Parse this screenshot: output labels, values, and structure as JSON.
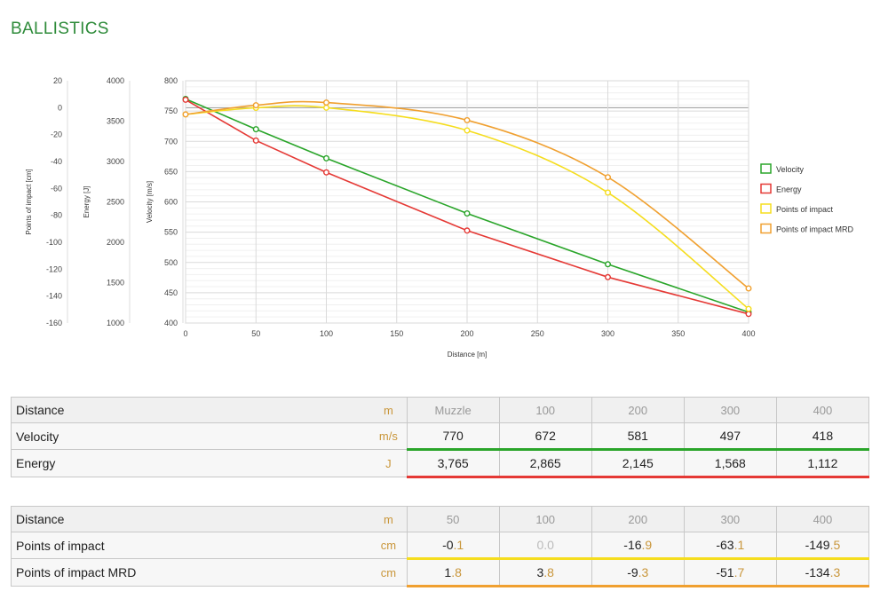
{
  "page": {
    "title": "BALLISTICS"
  },
  "chart_data": {
    "type": "line",
    "xlabel": "Distance [m]",
    "x": [
      0,
      50,
      100,
      200,
      300,
      400
    ],
    "xlim": [
      0,
      400
    ],
    "xticks": [
      0,
      50,
      100,
      150,
      200,
      250,
      300,
      350,
      400
    ],
    "axes": [
      {
        "label": "Velocity [m/s]",
        "range": [
          400,
          800
        ],
        "ticks": [
          400,
          450,
          500,
          550,
          600,
          650,
          700,
          750,
          800
        ]
      },
      {
        "label": "Energy [J]",
        "range": [
          1000,
          4000
        ],
        "ticks": [
          1000,
          1500,
          2000,
          2500,
          3000,
          3500,
          4000
        ]
      },
      {
        "label": "Points of impact [cm]",
        "range": [
          -160,
          20
        ],
        "ticks": [
          -160,
          -140,
          -120,
          -100,
          -80,
          -60,
          -40,
          -20,
          0,
          20
        ]
      }
    ],
    "series": [
      {
        "name": "Velocity",
        "axis": 0,
        "color": "#2aa52a",
        "values": [
          770,
          720,
          672,
          581,
          497,
          418
        ]
      },
      {
        "name": "Energy",
        "axis": 1,
        "color": "#e53935",
        "values": [
          3765,
          3260,
          2865,
          2145,
          1568,
          1112
        ]
      },
      {
        "name": "Points of impact",
        "axis": 2,
        "color": "#f5dd1e",
        "values": [
          -5,
          -0.1,
          0.0,
          -16.9,
          -63.1,
          -149.5
        ]
      },
      {
        "name": "Points of impact MRD",
        "axis": 2,
        "color": "#f0a030",
        "values": [
          -5,
          1.8,
          3.8,
          -9.3,
          -51.7,
          -134.3
        ]
      }
    ],
    "legend_position": "right",
    "grid": true
  },
  "table1": {
    "header": {
      "label": "Distance",
      "unit": "m",
      "values": [
        "Muzzle",
        "100",
        "200",
        "300",
        "400"
      ]
    },
    "rows": [
      {
        "label": "Velocity",
        "unit": "m/s",
        "values": [
          "770",
          "672",
          "581",
          "497",
          "418"
        ]
      },
      {
        "label": "Energy",
        "unit": "J",
        "values": [
          "3,765",
          "2,865",
          "2,145",
          "1,568",
          "1,112"
        ]
      }
    ]
  },
  "table2": {
    "header": {
      "label": "Distance",
      "unit": "m",
      "values": [
        "50",
        "100",
        "200",
        "300",
        "400"
      ]
    },
    "rows": [
      {
        "label": "Points of impact",
        "unit": "cm",
        "values": [
          {
            "int": "-0",
            "frac": ".1"
          },
          {
            "int": "0",
            "frac": ".0"
          },
          {
            "int": "-16",
            "frac": ".9"
          },
          {
            "int": "-63",
            "frac": ".1"
          },
          {
            "int": "-149",
            "frac": ".5"
          }
        ]
      },
      {
        "label": "Points of impact MRD",
        "unit": "cm",
        "values": [
          {
            "int": "1",
            "frac": ".8"
          },
          {
            "int": "3",
            "frac": ".8"
          },
          {
            "int": "-9",
            "frac": ".3"
          },
          {
            "int": "-51",
            "frac": ".7"
          },
          {
            "int": "-134",
            "frac": ".3"
          }
        ]
      }
    ]
  }
}
